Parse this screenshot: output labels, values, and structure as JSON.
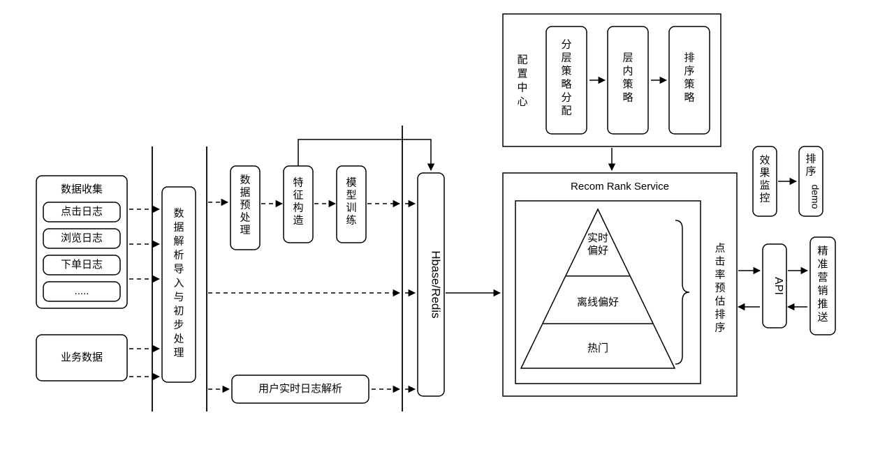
{
  "type": "flowchart",
  "background_color": "#ffffff",
  "stroke_color": "#000000",
  "font_family": "Microsoft YaHei",
  "title_fontsize": 18,
  "label_fontsize": 15,
  "small_fontsize": 13,
  "corner_radius": 8,
  "dash_pattern": "6 5",
  "dataCollect": {
    "title": "数据收集",
    "items": [
      "点击日志",
      "浏览日志",
      "下单日志",
      "....."
    ]
  },
  "businessData": "业务数据",
  "parseImport": "数据解析导入与初步处理",
  "preprocess": "数据预处理",
  "feature": "特征构造",
  "modelTrain": "模型训练",
  "realtimeLog": "用户实时日志解析",
  "hbase": "Hbase/Redis",
  "configCenter": {
    "title": "配置中心",
    "items": [
      "分层策略分配",
      "层内策略",
      "排序策略"
    ]
  },
  "rankService": {
    "title": "Recom Rank Service",
    "pyramid": [
      "实时偏好",
      "离线偏好",
      "热门"
    ],
    "ctr": "点击率预估排序"
  },
  "api": "API",
  "monitor": "效果监控",
  "sortDemo": "排序demo",
  "marketing": "精准营销推送"
}
